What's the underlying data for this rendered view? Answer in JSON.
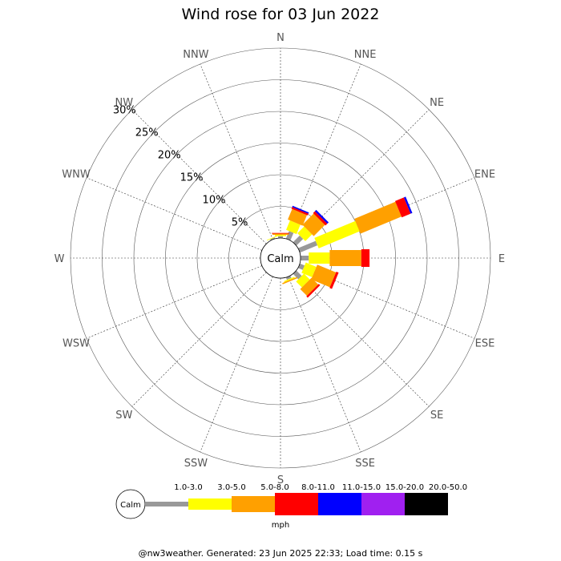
{
  "chart_data": {
    "type": "wind-rose",
    "title": "Wind rose for 03 Jun 2022",
    "calm_label": "Calm",
    "directions": [
      "N",
      "NNE",
      "NE",
      "ENE",
      "E",
      "ESE",
      "SE",
      "SSE",
      "S",
      "SSW",
      "SW",
      "WSW",
      "W",
      "WNW",
      "NW",
      "NNW"
    ],
    "ring_labels": [
      "5%",
      "10%",
      "15%",
      "20%",
      "25%",
      "30%"
    ],
    "rings_percent": [
      5,
      10,
      15,
      20,
      25,
      30
    ],
    "rmax_percent": 30,
    "speed_bins": [
      "1.0-3.0",
      "3.0-5.0",
      "5.0-8.0",
      "8.0-11.0",
      "11.0-15.0",
      "15.0-20.0",
      "20.0-50.0"
    ],
    "bin_colors": [
      "#999999",
      "#ffff00",
      "#ffa000",
      "#ff0000",
      "#0000ff",
      "#a020f0",
      "#000000"
    ],
    "units": "mph",
    "series": [
      {
        "direction": "NNE",
        "values": [
          1.3,
          1.6,
          1.8,
          0.3,
          0.2,
          0,
          0
        ]
      },
      {
        "direction": "NE",
        "values": [
          1.5,
          1.5,
          2.5,
          0.4,
          0.3,
          0,
          0
        ]
      },
      {
        "direction": "ENE",
        "values": [
          3.0,
          7.0,
          7.0,
          1.5,
          0.3,
          0,
          0
        ]
      },
      {
        "direction": "E",
        "values": [
          1.3,
          3.3,
          5.0,
          1.3,
          0,
          0,
          0
        ]
      },
      {
        "direction": "ESE",
        "values": [
          0.8,
          1.8,
          3.2,
          0.4,
          0,
          0,
          0
        ]
      },
      {
        "direction": "SE",
        "values": [
          1.2,
          1.3,
          1.5,
          0.3,
          0,
          0,
          0
        ]
      },
      {
        "direction": "SSE",
        "values": [
          0.4,
          0.2,
          0.2,
          0,
          0,
          0,
          0
        ]
      },
      {
        "direction": "N",
        "values": [
          0.3,
          0.2,
          0.2,
          0.1,
          0,
          0,
          0
        ]
      },
      {
        "direction": "NNW",
        "values": [
          0.2,
          0.1,
          0,
          0,
          0,
          0,
          0
        ]
      }
    ]
  },
  "footer": "@nw3weather. Generated: 23 Jun 2025 22:33; Load time: 0.15 s"
}
